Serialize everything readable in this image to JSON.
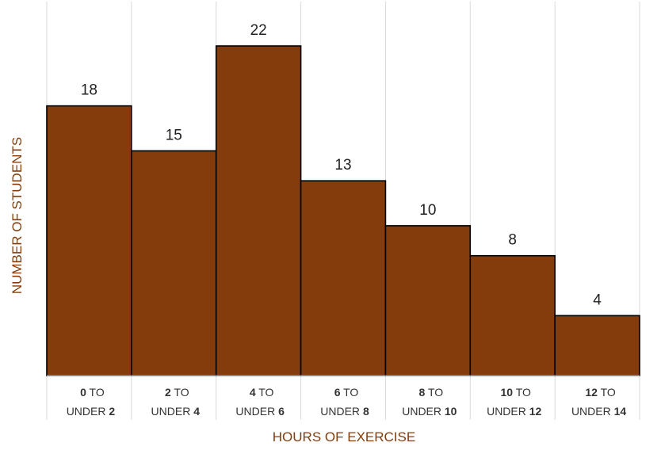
{
  "chart_data": {
    "type": "bar",
    "categories": [
      {
        "from": "0",
        "mid": "TO",
        "under": "UNDER",
        "to": "2"
      },
      {
        "from": "2",
        "mid": "TO",
        "under": "UNDER",
        "to": "4"
      },
      {
        "from": "4",
        "mid": "TO",
        "under": "UNDER",
        "to": "6"
      },
      {
        "from": "6",
        "mid": "TO",
        "under": "UNDER",
        "to": "8"
      },
      {
        "from": "8",
        "mid": "TO",
        "under": "UNDER",
        "to": "10"
      },
      {
        "from": "10",
        "mid": "TO",
        "under": "UNDER",
        "to": "12"
      },
      {
        "from": "12",
        "mid": "TO",
        "under": "UNDER",
        "to": "14"
      }
    ],
    "values": [
      18,
      15,
      22,
      13,
      10,
      8,
      4
    ],
    "xlabel": "HOURS OF EXERCISE",
    "ylabel": "NUMBER OF STUDENTS",
    "ylim": [
      0,
      25
    ],
    "grid": "vertical",
    "bar_color": "#843C0C",
    "label_color": "#843C0C"
  }
}
